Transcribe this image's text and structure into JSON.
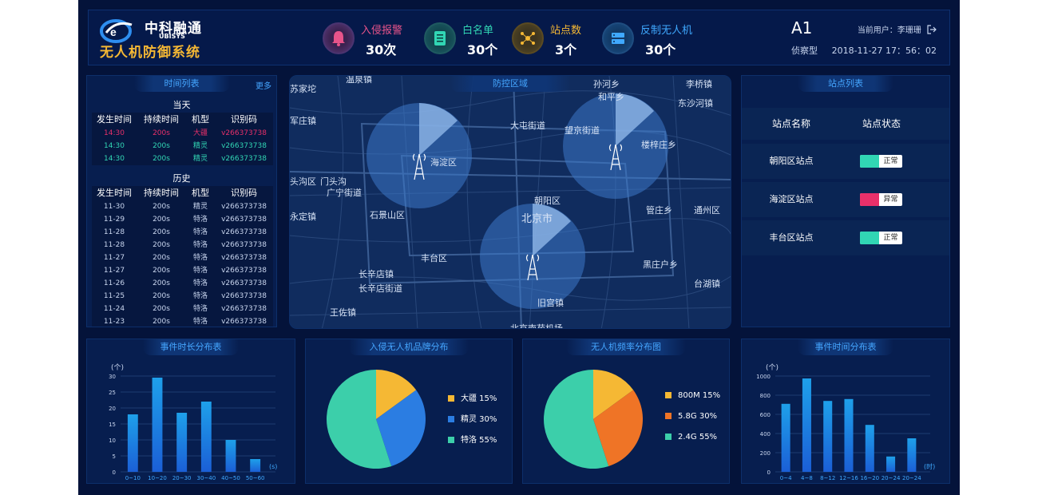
{
  "header": {
    "brand_name": "中科融通",
    "brand_en": "UBISYS",
    "system_title": "无人机防御系统",
    "stats": [
      {
        "icon": "bell-icon",
        "label": "入侵报警",
        "value": "30次",
        "color": "#e8548a"
      },
      {
        "icon": "list-icon",
        "label": "白名单",
        "value": "30个",
        "color": "#31d6b4"
      },
      {
        "icon": "hub-icon",
        "label": "站点数",
        "value": "3个",
        "color": "#f5b834"
      },
      {
        "icon": "server-icon",
        "label": "反制无人机",
        "value": "30个",
        "color": "#3fa9ff"
      }
    ],
    "mode": "A1",
    "mode_name": "侦察型",
    "user": "当前用户：李珊珊",
    "logout_icon": "logout-icon",
    "datetime": "2018-11-27 17：56：02"
  },
  "timelist": {
    "title": "时间列表",
    "more": "更多",
    "today_title": "当天",
    "history_title": "历史",
    "columns": [
      "发生时间",
      "持续时间",
      "机型",
      "识别码"
    ],
    "today": [
      [
        "14:30",
        "200s",
        "大疆",
        "v266373738"
      ],
      [
        "14:30",
        "200s",
        "精灵",
        "v266373738"
      ],
      [
        "14:30",
        "200s",
        "精灵",
        "v266373738"
      ]
    ],
    "today_colors": [
      "#e8306a",
      "#31d6b4",
      "#31d6b4"
    ],
    "history": [
      [
        "11-30",
        "200s",
        "精灵",
        "v266373738"
      ],
      [
        "11-29",
        "200s",
        "特洛",
        "v266373738"
      ],
      [
        "11-28",
        "200s",
        "特洛",
        "v266373738"
      ],
      [
        "11-28",
        "200s",
        "特洛",
        "v266373738"
      ],
      [
        "11-27",
        "200s",
        "特洛",
        "v266373738"
      ],
      [
        "11-27",
        "200s",
        "特洛",
        "v266373738"
      ],
      [
        "11-26",
        "200s",
        "特洛",
        "v266373738"
      ],
      [
        "11-25",
        "200s",
        "特洛",
        "v266373738"
      ],
      [
        "11-24",
        "200s",
        "特洛",
        "v266373738"
      ],
      [
        "11-23",
        "200s",
        "特洛",
        "v266373738"
      ]
    ]
  },
  "map": {
    "title": "防控区域",
    "places": [
      "温泉镇",
      "孙河乡",
      "李桥镇",
      "苏家坨",
      "和平乡",
      "东沙河镇",
      "军庄镇",
      "海淀区",
      "大屯街道",
      "望京街道",
      "楼梓庄乡",
      "头沟区",
      "门头沟",
      "广宁街道",
      "朝阳区",
      "石景山区",
      "北京市",
      "永定镇",
      "管庄乡",
      "通州区",
      "丰台区",
      "长辛店镇",
      "长辛店街道",
      "黑庄户乡",
      "台湖镇",
      "旧宫镇",
      "王佐镇",
      "北京南苑机场"
    ]
  },
  "stations": {
    "title": "站点列表",
    "col_name": "站点名称",
    "col_status": "站点状态",
    "rows": [
      {
        "name": "朝阳区站点",
        "status": "正常",
        "color": "#31d6b4"
      },
      {
        "name": "海淀区站点",
        "status": "异常",
        "color": "#e8306a"
      },
      {
        "name": "丰台区站点",
        "status": "正常",
        "color": "#31d6b4"
      }
    ]
  },
  "charts": {
    "duration": {
      "title": "事件时长分布表",
      "unit": "(个)",
      "xunit": "(s)",
      "type": "bar",
      "categories": [
        "0~10",
        "10~20",
        "20~30",
        "30~40",
        "40~50",
        "50~60"
      ],
      "values": [
        18,
        29.5,
        18.5,
        22,
        10,
        4
      ],
      "yticks": [
        0,
        5,
        10,
        15,
        20,
        25,
        30
      ],
      "ylim": [
        0,
        30
      ]
    },
    "brand": {
      "title": "入侵无人机品牌分布",
      "type": "pie",
      "slices": [
        {
          "label": "大疆",
          "pct": "15%",
          "value": 15,
          "color": "#f5b834"
        },
        {
          "label": "精灵",
          "pct": "30%",
          "value": 30,
          "color": "#2b7de2"
        },
        {
          "label": "特洛",
          "pct": "55%",
          "value": 55,
          "color": "#3ccfaa"
        }
      ]
    },
    "freq": {
      "title": "无人机频率分布图",
      "type": "pie",
      "slices": [
        {
          "label": "800M",
          "pct": "15%",
          "value": 15,
          "color": "#f5b834"
        },
        {
          "label": "5.8G",
          "pct": "30%",
          "value": 30,
          "color": "#ef7426"
        },
        {
          "label": "2.4G",
          "pct": "55%",
          "value": 55,
          "color": "#3ccfaa"
        }
      ]
    },
    "time": {
      "title": "事件时间分布表",
      "unit": "(个)",
      "xunit": "(时)",
      "type": "bar",
      "categories": [
        "0~4",
        "4~8",
        "8~12",
        "12~16",
        "16~20",
        "20~24",
        "20~24"
      ],
      "values": [
        710,
        975,
        740,
        760,
        490,
        160,
        350
      ],
      "yticks": [
        0,
        200,
        400,
        600,
        800,
        1000
      ],
      "ylim": [
        0,
        1000
      ]
    }
  }
}
